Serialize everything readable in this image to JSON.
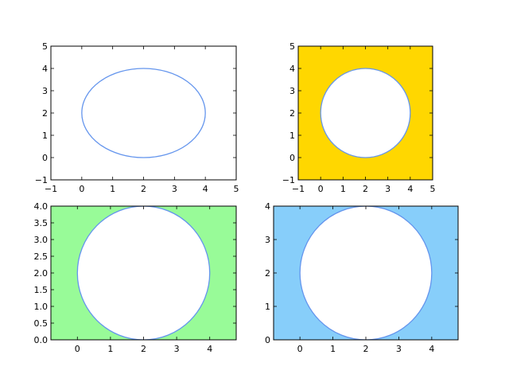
{
  "chart_data": [
    {
      "type": "line",
      "shape": "circle",
      "center": [
        2,
        2
      ],
      "radius": 2,
      "xlim": [
        -1,
        5
      ],
      "ylim": [
        -1,
        5
      ],
      "xticks": [
        -1,
        0,
        1,
        2,
        3,
        4,
        5
      ],
      "yticks": [
        -1,
        0,
        1,
        2,
        3,
        4,
        5
      ],
      "xticklabels": [
        "−1",
        "0",
        "1",
        "2",
        "3",
        "4",
        "5"
      ],
      "yticklabels": [
        "−1",
        "0",
        "1",
        "2",
        "3",
        "4",
        "5"
      ],
      "circle_color": "#6495ed",
      "background": "#ffffff",
      "fill_outside": false,
      "grid": false
    },
    {
      "type": "line",
      "shape": "circle",
      "center": [
        2,
        2
      ],
      "radius": 2,
      "xlim": [
        -1,
        5
      ],
      "ylim": [
        -1,
        5
      ],
      "xticks": [
        -1,
        0,
        1,
        2,
        3,
        4,
        5
      ],
      "yticks": [
        -1,
        0,
        1,
        2,
        3,
        4,
        5
      ],
      "xticklabels": [
        "−1",
        "0",
        "1",
        "2",
        "3",
        "4",
        "5"
      ],
      "yticklabels": [
        "−1",
        "0",
        "1",
        "2",
        "3",
        "4",
        "5"
      ],
      "circle_color": "#6495ed",
      "background": "#ffd700",
      "fill_outside": true,
      "grid": false
    },
    {
      "type": "line",
      "shape": "circle",
      "center": [
        2,
        2
      ],
      "radius": 2,
      "xlim": [
        -0.8,
        4.8
      ],
      "ylim": [
        0,
        4
      ],
      "xticks": [
        0,
        1,
        2,
        3,
        4
      ],
      "yticks": [
        0,
        0.5,
        1,
        1.5,
        2,
        2.5,
        3,
        3.5,
        4
      ],
      "xticklabels": [
        "0",
        "1",
        "2",
        "3",
        "4"
      ],
      "yticklabels": [
        "0.0",
        "0.5",
        "1.0",
        "1.5",
        "2.0",
        "2.5",
        "3.0",
        "3.5",
        "4.0"
      ],
      "circle_color": "#6495ed",
      "background": "#98fb98",
      "fill_outside": true,
      "grid": false
    },
    {
      "type": "line",
      "shape": "circle",
      "center": [
        2,
        2
      ],
      "radius": 2,
      "xlim": [
        -0.8,
        4.8
      ],
      "ylim": [
        0,
        4
      ],
      "xticks": [
        0,
        1,
        2,
        3,
        4
      ],
      "yticks": [
        0,
        1,
        2,
        3,
        4
      ],
      "xticklabels": [
        "0",
        "1",
        "2",
        "3",
        "4"
      ],
      "yticklabels": [
        "0",
        "1",
        "2",
        "3",
        "4"
      ],
      "circle_color": "#6495ed",
      "background": "#87cefa",
      "fill_outside": true,
      "grid": false
    }
  ]
}
